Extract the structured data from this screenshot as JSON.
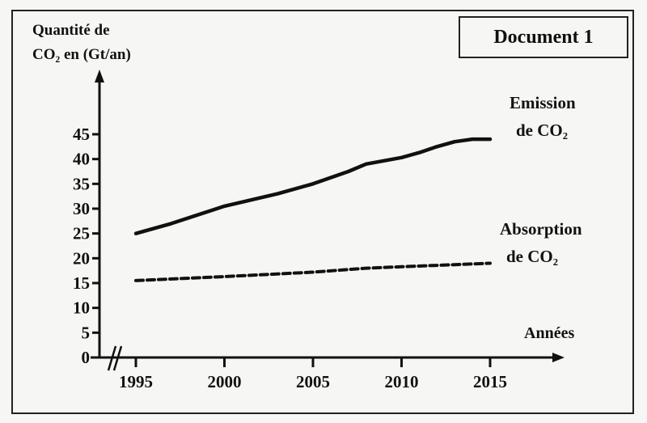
{
  "document_label": "Document 1",
  "chart_data": {
    "type": "line",
    "ylabel_lines": [
      "Quantité de",
      "CO₂ en (Gt/an)"
    ],
    "xlabel": "Années",
    "xlim": [
      1995,
      2015
    ],
    "ylim": [
      0,
      45
    ],
    "x_ticks": [
      1995,
      2000,
      2005,
      2010,
      2015
    ],
    "y_ticks": [
      0,
      5,
      10,
      15,
      20,
      25,
      30,
      35,
      40,
      45
    ],
    "axis_break": true,
    "grid": false,
    "series": [
      {
        "name": "Emission de CO₂",
        "label_lines": [
          "Emission",
          "de CO₂"
        ],
        "style": "solid",
        "x": [
          1995,
          1997,
          2000,
          2003,
          2005,
          2007,
          2008,
          2010,
          2011,
          2012,
          2013,
          2014,
          2015
        ],
        "y": [
          25,
          27,
          30.5,
          33,
          35,
          37.5,
          39,
          40.3,
          41.3,
          42.5,
          43.5,
          44,
          44
        ]
      },
      {
        "name": "Absorption de CO₂",
        "label_lines": [
          "Absorption",
          "de CO₂"
        ],
        "style": "dashed",
        "x": [
          1995,
          2000,
          2005,
          2008,
          2010,
          2015
        ],
        "y": [
          15.5,
          16.3,
          17.2,
          18,
          18.3,
          19
        ]
      }
    ]
  }
}
